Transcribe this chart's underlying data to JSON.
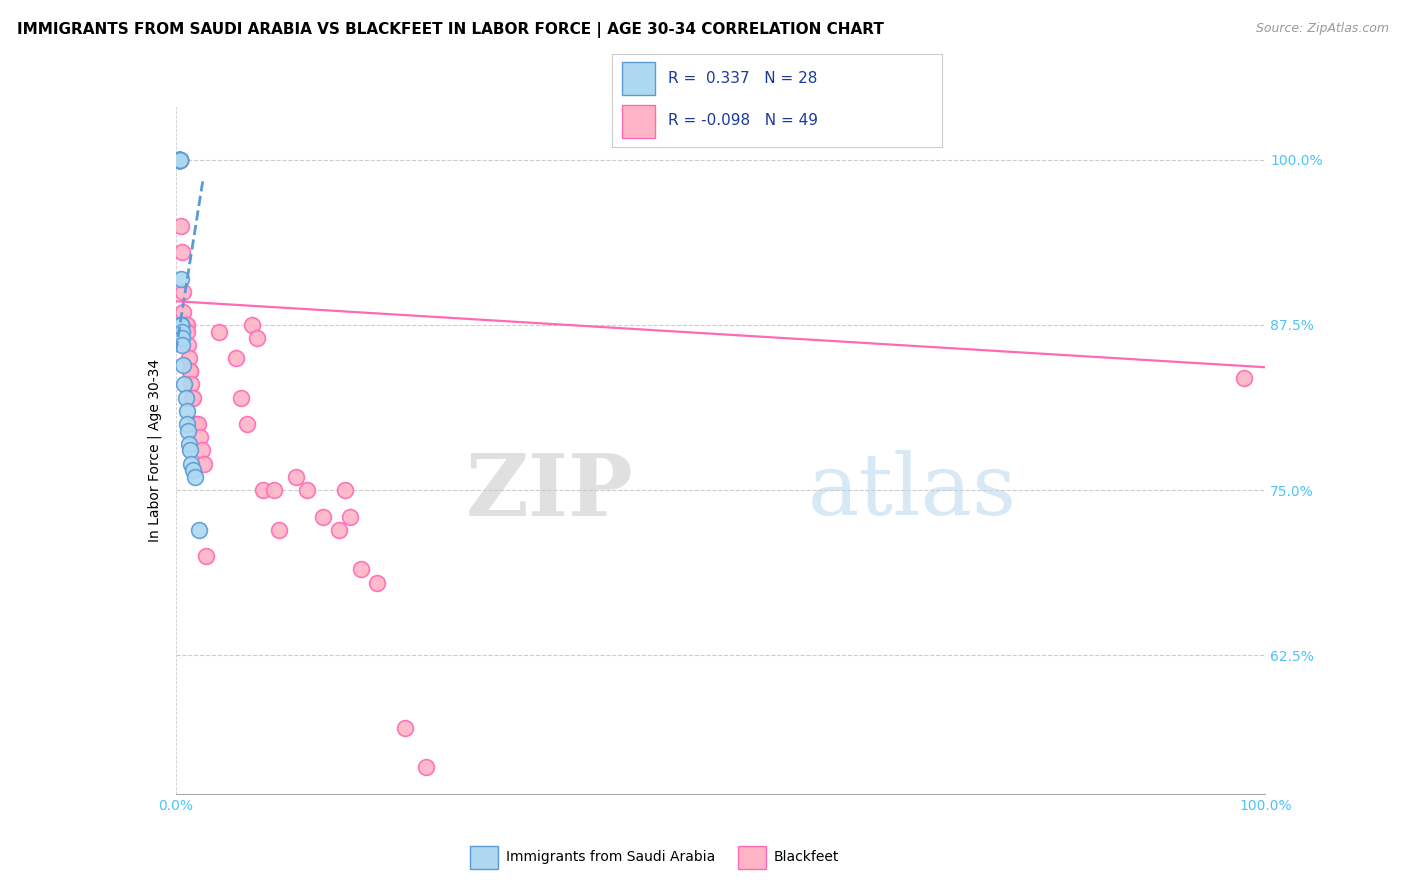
{
  "title": "IMMIGRANTS FROM SAUDI ARABIA VS BLACKFEET IN LABOR FORCE | AGE 30-34 CORRELATION CHART",
  "source": "Source: ZipAtlas.com",
  "ylabel": "In Labor Force | Age 30-34",
  "ytick_values": [
    0.625,
    0.75,
    0.875,
    1.0
  ],
  "xlim": [
    0.0,
    1.0
  ],
  "ylim": [
    0.52,
    1.04
  ],
  "legend_blue_label": "Immigrants from Saudi Arabia",
  "legend_pink_label": "Blackfeet",
  "R_blue": 0.337,
  "N_blue": 28,
  "R_pink": -0.098,
  "N_pink": 49,
  "blue_scatter_x": [
    0.003,
    0.003,
    0.003,
    0.003,
    0.004,
    0.004,
    0.004,
    0.005,
    0.005,
    0.005,
    0.005,
    0.005,
    0.005,
    0.006,
    0.006,
    0.006,
    0.007,
    0.008,
    0.009,
    0.01,
    0.01,
    0.011,
    0.012,
    0.013,
    0.014,
    0.016,
    0.018,
    0.021
  ],
  "blue_scatter_y": [
    1.0,
    1.0,
    1.0,
    1.0,
    1.0,
    1.0,
    1.0,
    0.91,
    0.875,
    0.875,
    0.875,
    0.875,
    0.875,
    0.87,
    0.865,
    0.86,
    0.845,
    0.83,
    0.82,
    0.81,
    0.8,
    0.795,
    0.785,
    0.78,
    0.77,
    0.765,
    0.76,
    0.72
  ],
  "pink_scatter_x": [
    0.003,
    0.003,
    0.003,
    0.004,
    0.004,
    0.004,
    0.004,
    0.005,
    0.006,
    0.007,
    0.007,
    0.008,
    0.009,
    0.01,
    0.01,
    0.011,
    0.012,
    0.013,
    0.013,
    0.014,
    0.015,
    0.016,
    0.018,
    0.019,
    0.02,
    0.022,
    0.024,
    0.026,
    0.028,
    0.04,
    0.055,
    0.06,
    0.065,
    0.07,
    0.075,
    0.08,
    0.09,
    0.095,
    0.11,
    0.12,
    0.135,
    0.15,
    0.155,
    0.16,
    0.17,
    0.185,
    0.21,
    0.23,
    0.98
  ],
  "pink_scatter_y": [
    1.0,
    1.0,
    1.0,
    1.0,
    1.0,
    1.0,
    1.0,
    0.95,
    0.93,
    0.9,
    0.885,
    0.875,
    0.875,
    0.875,
    0.87,
    0.86,
    0.85,
    0.84,
    0.84,
    0.83,
    0.82,
    0.82,
    0.8,
    0.8,
    0.8,
    0.79,
    0.78,
    0.77,
    0.7,
    0.87,
    0.85,
    0.82,
    0.8,
    0.875,
    0.865,
    0.75,
    0.75,
    0.72,
    0.76,
    0.75,
    0.73,
    0.72,
    0.75,
    0.73,
    0.69,
    0.68,
    0.57,
    0.54,
    0.835
  ],
  "blue_line_x": [
    0.0,
    0.025
  ],
  "blue_line_y": [
    0.855,
    0.985
  ],
  "pink_line_x": [
    0.0,
    1.0
  ],
  "pink_line_y": [
    0.893,
    0.843
  ],
  "watermark_zip": "ZIP",
  "watermark_atlas": "atlas",
  "title_fontsize": 11,
  "source_fontsize": 9,
  "axis_label_fontsize": 10,
  "tick_fontsize": 10,
  "blue_color": "#5B9BD5",
  "blue_fill": "#ADD8F0",
  "pink_color": "#FF69B4",
  "pink_fill": "#FFB3C6",
  "grid_color": "#CCCCCC",
  "tick_color": "#4FC3F7"
}
